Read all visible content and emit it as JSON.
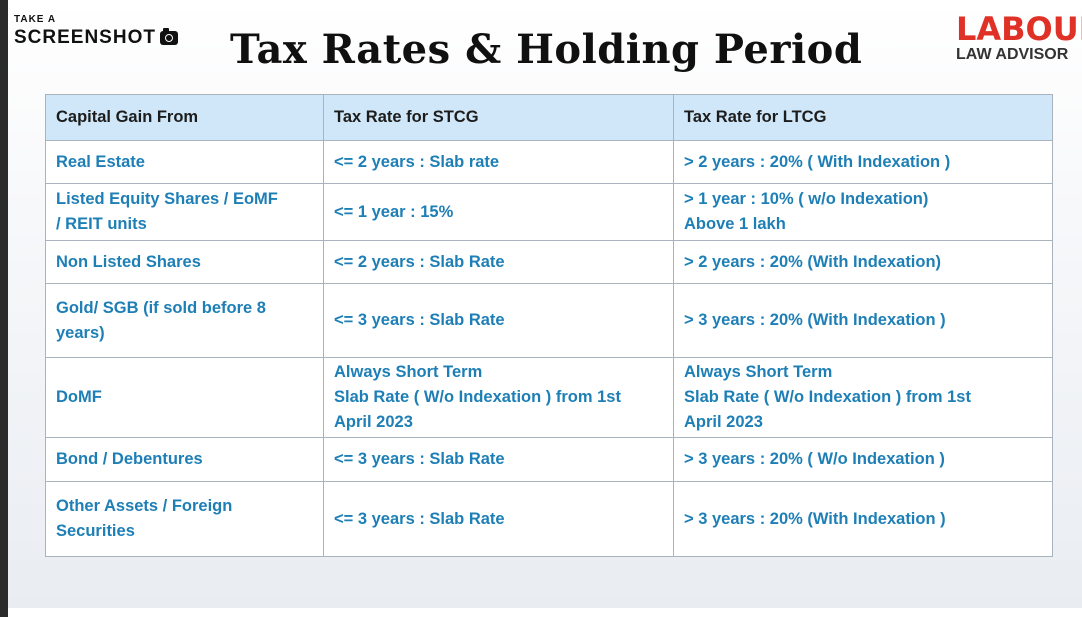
{
  "watermark": {
    "line1": "TAKE A",
    "line2": "SCREENSHOT",
    "icon": "camera-icon"
  },
  "title": "Tax Rates & Holding Period",
  "logo": {
    "top": "LABOUR",
    "bottom": "LAW ADVISOR",
    "color": "#e03127"
  },
  "table": {
    "headers": [
      "Capital Gain From",
      "Tax Rate for STCG",
      "Tax Rate for LTCG"
    ],
    "rows": [
      {
        "asset": [
          "Real Estate"
        ],
        "stcg": [
          "<= 2 years : Slab rate"
        ],
        "ltcg": [
          "> 2 years : 20% ( With Indexation )"
        ]
      },
      {
        "asset": [
          "Listed Equity Shares / EoMF",
          "/ REIT units"
        ],
        "stcg": [
          "<= 1 year : 15%"
        ],
        "ltcg": [
          "> 1 year : 10% ( w/o Indexation)",
          "Above 1 lakh"
        ]
      },
      {
        "asset": [
          "Non Listed Shares"
        ],
        "stcg": [
          "<= 2 years : Slab Rate"
        ],
        "ltcg": [
          "> 2 years : 20% (With Indexation)"
        ]
      },
      {
        "asset": [
          "Gold/ SGB (if sold before 8",
          "years)"
        ],
        "stcg": [
          "<= 3 years : Slab Rate"
        ],
        "ltcg": [
          "> 3 years : 20% (With Indexation )"
        ]
      },
      {
        "asset": [
          "DoMF"
        ],
        "stcg": [
          "Always Short Term",
          "Slab Rate ( W/o Indexation ) from 1st",
          "April 2023"
        ],
        "ltcg": [
          "Always Short Term",
          "Slab Rate ( W/o Indexation ) from 1st",
          "April 2023"
        ]
      },
      {
        "asset": [
          "Bond / Debentures"
        ],
        "stcg": [
          "<= 3 years : Slab Rate"
        ],
        "ltcg": [
          "> 3 years : 20% ( W/o Indexation )"
        ]
      },
      {
        "asset": [
          "Other Assets / Foreign",
          "Securities"
        ],
        "stcg": [
          "<= 3 years : Slab Rate"
        ],
        "ltcg": [
          "> 3 years : 20% (With Indexation )"
        ]
      }
    ]
  },
  "colors": {
    "header_bg": "#cfe7f8",
    "cell_text": "#1e7fb6",
    "border": "#a9b3bd"
  }
}
